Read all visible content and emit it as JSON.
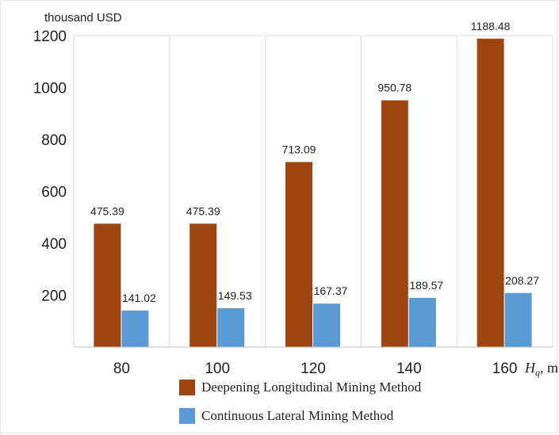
{
  "chart_data": {
    "type": "bar",
    "ylabel": "thousand USD",
    "xlabel_var": "H",
    "xlabel_sub": "q",
    "xlabel_unit": ", m",
    "categories": [
      "80",
      "100",
      "120",
      "140",
      "160"
    ],
    "series": [
      {
        "name": "Deepening Longitudinal Mining Method",
        "color": "#9e4510",
        "values": [
          475.39,
          475.39,
          713.09,
          950.78,
          1188.48
        ],
        "labels": [
          "475.39",
          "475.39",
          "713.09",
          "950.78",
          "1188.48"
        ]
      },
      {
        "name": "Continuous Lateral Mining Method",
        "color": "#5b9bd5",
        "values": [
          141.02,
          149.53,
          167.37,
          189.57,
          208.27
        ],
        "labels": [
          "141.02",
          "149.53",
          "167.37",
          "189.57",
          "208.27"
        ]
      }
    ],
    "yticks": [
      "200",
      "400",
      "600",
      "800",
      "1000",
      "1200"
    ],
    "ylim": [
      0,
      1200
    ],
    "grid": "vertical"
  }
}
